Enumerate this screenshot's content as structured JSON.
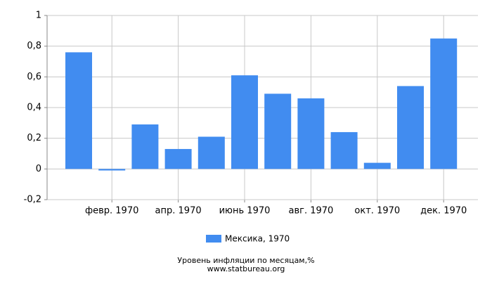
{
  "chart_data": {
    "type": "bar",
    "title": "Уровень инфляции по месяцам,%",
    "source": "www.statbureau.org",
    "categories": [
      null,
      "февр. 1970",
      null,
      "апр. 1970",
      null,
      "июнь 1970",
      null,
      "авг. 1970",
      null,
      "окт. 1970",
      null,
      "дек. 1970"
    ],
    "series": [
      {
        "name": "Мексика, 1970",
        "color": "#418cf0",
        "values": [
          0.76,
          -0.01,
          0.29,
          0.13,
          0.21,
          0.61,
          0.49,
          0.46,
          0.24,
          0.04,
          0.54,
          0.85
        ]
      }
    ],
    "ylim": [
      -0.2,
      1
    ],
    "yticks": [
      {
        "value": -0.2,
        "label": "-0,2"
      },
      0,
      {
        "value": 0.2,
        "label": "0,2"
      },
      {
        "value": 0.4,
        "label": "0,4"
      },
      {
        "value": 0.6,
        "label": "0,6"
      },
      {
        "value": 0.8,
        "label": "0,8"
      },
      1
    ],
    "grid": true
  }
}
